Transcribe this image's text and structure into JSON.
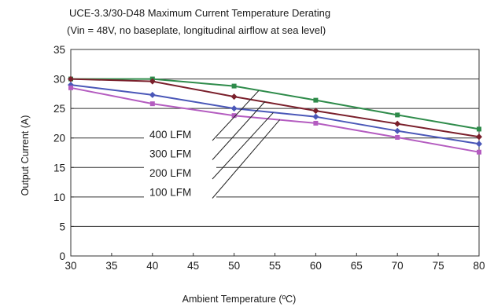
{
  "chart_data": {
    "type": "line",
    "title": "UCE-3.3/30-D48 Maximum Current Temperature Derating",
    "subtitle": "(Vin = 48V, no baseplate, longitudinal airflow at sea level)",
    "xlabel": "Ambient Temperature (ºC)",
    "ylabel": "Output Current (A)",
    "xlim": [
      30,
      80
    ],
    "ylim": [
      0,
      35
    ],
    "x_ticks": [
      30,
      35,
      40,
      45,
      50,
      55,
      60,
      65,
      70,
      75,
      80
    ],
    "y_ticks": [
      0,
      5,
      10,
      15,
      20,
      25,
      30,
      35
    ],
    "grid": "horizontal",
    "x": [
      30,
      40,
      50,
      60,
      70,
      80
    ],
    "series": [
      {
        "name": "400 LFM",
        "color": "#2e8b4a",
        "marker": "square",
        "values": [
          30.0,
          30.0,
          28.8,
          26.4,
          23.9,
          21.5
        ]
      },
      {
        "name": "300 LFM",
        "color": "#7a1f2b",
        "marker": "diamond",
        "values": [
          30.0,
          29.6,
          27.0,
          24.6,
          22.4,
          20.2
        ]
      },
      {
        "name": "200 LFM",
        "color": "#4a57b8",
        "marker": "diamond",
        "values": [
          29.0,
          27.3,
          25.0,
          23.6,
          21.2,
          19.0
        ]
      },
      {
        "name": "100 LFM",
        "color": "#b45cc0",
        "marker": "square",
        "values": [
          28.5,
          25.8,
          23.8,
          22.5,
          20.1,
          17.6
        ]
      }
    ],
    "legend_callouts": [
      {
        "series": "400 LFM",
        "pointer_at": [
          53.0,
          28.0
        ]
      },
      {
        "series": "300 LFM",
        "pointer_at": [
          53.8,
          26.2
        ]
      },
      {
        "series": "200 LFM",
        "pointer_at": [
          54.8,
          24.3
        ]
      },
      {
        "series": "100 LFM",
        "pointer_at": [
          55.6,
          23.1
        ]
      }
    ]
  }
}
